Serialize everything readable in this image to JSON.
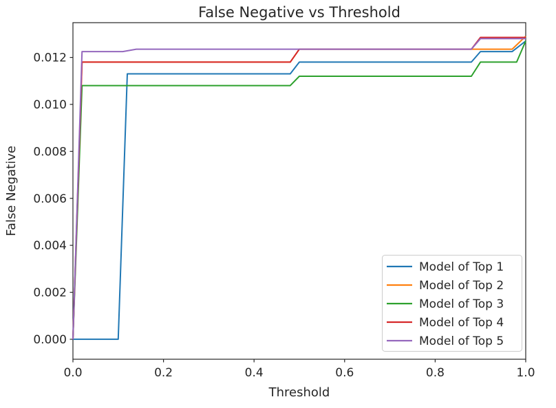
{
  "colors": {
    "background": "#ffffff",
    "text": "#262626",
    "spine": "#262626",
    "legend_border": "#cccccc",
    "legend_background": "#ffffff"
  },
  "chart_data": {
    "type": "line",
    "title": "False Negative vs Threshold",
    "xlabel": "Threshold",
    "ylabel": "False Negative",
    "xlim": [
      0.0,
      1.0
    ],
    "ylim": [
      -0.00085,
      0.01348
    ],
    "grid": false,
    "legend_position": "lower right",
    "x_ticks": [
      {
        "v": 0.0,
        "label": "0.0"
      },
      {
        "v": 0.2,
        "label": "0.2"
      },
      {
        "v": 0.4,
        "label": "0.4"
      },
      {
        "v": 0.6,
        "label": "0.6"
      },
      {
        "v": 0.8,
        "label": "0.8"
      },
      {
        "v": 1.0,
        "label": "1.0"
      }
    ],
    "y_ticks": [
      {
        "v": 0.0,
        "label": "0.000"
      },
      {
        "v": 0.002,
        "label": "0.002"
      },
      {
        "v": 0.004,
        "label": "0.004"
      },
      {
        "v": 0.006,
        "label": "0.006"
      },
      {
        "v": 0.008,
        "label": "0.008"
      },
      {
        "v": 0.01,
        "label": "0.010"
      },
      {
        "v": 0.012,
        "label": "0.012"
      }
    ],
    "series": [
      {
        "name": "Model of Top 1",
        "color": "#1f77b4",
        "points": [
          [
            0.0,
            0.0
          ],
          [
            0.1,
            0.0
          ],
          [
            0.12,
            0.0113
          ],
          [
            0.48,
            0.0113
          ],
          [
            0.5,
            0.0118
          ],
          [
            0.88,
            0.0118
          ],
          [
            0.9,
            0.01225
          ],
          [
            0.97,
            0.01225
          ],
          [
            1.0,
            0.0127
          ]
        ]
      },
      {
        "name": "Model of Top 2",
        "color": "#ff7f0e",
        "points": [
          [
            0.0,
            0.0
          ],
          [
            0.02,
            0.0118
          ],
          [
            0.48,
            0.0118
          ],
          [
            0.5,
            0.01235
          ],
          [
            0.97,
            0.01235
          ],
          [
            1.0,
            0.0129
          ]
        ]
      },
      {
        "name": "Model of Top 3",
        "color": "#2ca02c",
        "points": [
          [
            0.0,
            0.0
          ],
          [
            0.02,
            0.0108
          ],
          [
            0.48,
            0.0108
          ],
          [
            0.5,
            0.0112
          ],
          [
            0.88,
            0.0112
          ],
          [
            0.9,
            0.0118
          ],
          [
            0.98,
            0.0118
          ],
          [
            1.0,
            0.0127
          ]
        ]
      },
      {
        "name": "Model of Top 4",
        "color": "#d62728",
        "points": [
          [
            0.0,
            0.0
          ],
          [
            0.02,
            0.0118
          ],
          [
            0.48,
            0.0118
          ],
          [
            0.5,
            0.01235
          ],
          [
            0.88,
            0.01235
          ],
          [
            0.9,
            0.01285
          ],
          [
            1.0,
            0.01285
          ]
        ]
      },
      {
        "name": "Model of Top 5",
        "color": "#9467bd",
        "points": [
          [
            0.0,
            0.0
          ],
          [
            0.02,
            0.01225
          ],
          [
            0.11,
            0.01225
          ],
          [
            0.14,
            0.01235
          ],
          [
            0.88,
            0.01235
          ],
          [
            0.9,
            0.0128
          ],
          [
            1.0,
            0.0128
          ]
        ]
      }
    ]
  }
}
